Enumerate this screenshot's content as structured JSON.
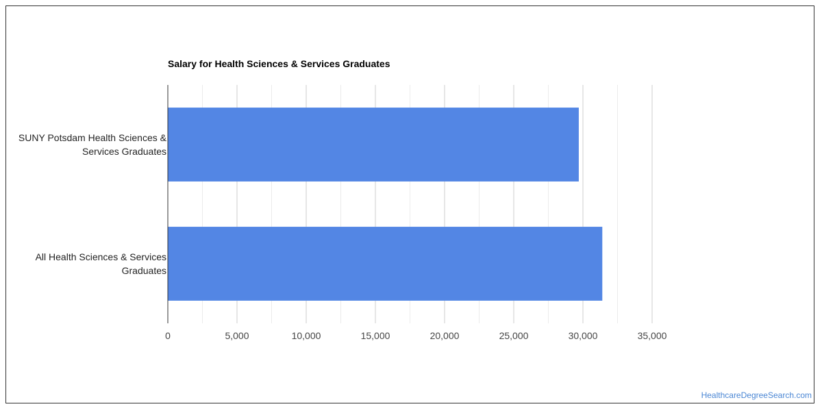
{
  "chart_data": {
    "type": "bar",
    "orientation": "horizontal",
    "title": "Salary for Health Sciences & Services Graduates",
    "categories": [
      [
        "SUNY Potsdam Health Sciences &",
        "Services Graduates"
      ],
      [
        "All Health Sciences & Services",
        "Graduates"
      ]
    ],
    "values": [
      29700,
      31400
    ],
    "xlim": [
      0,
      35000
    ],
    "xticks": [
      0,
      5000,
      10000,
      15000,
      20000,
      25000,
      30000,
      35000
    ],
    "xtick_labels": [
      "0",
      "5,000",
      "10,000",
      "15,000",
      "20,000",
      "25,000",
      "30,000",
      "35,000"
    ],
    "grid": true,
    "bar_color": "#5386e4",
    "xlabel": "",
    "ylabel": ""
  },
  "watermark": "HealthcareDegreeSearch.com"
}
